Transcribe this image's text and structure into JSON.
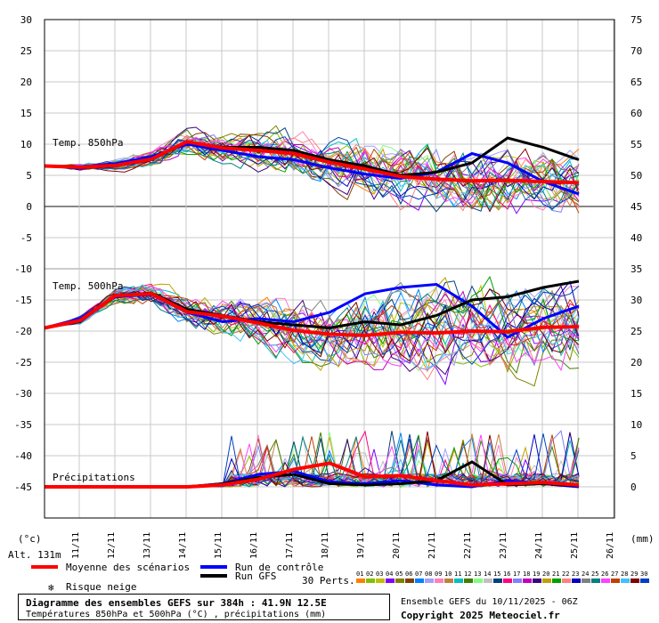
{
  "chart_data": {
    "type": "line",
    "title": "Diagramme des ensembles GEFS sur 384h : 41.9N 12.5E",
    "subtitle": "Températures 850hPa et 500hPa (°C) , précipitations (mm)",
    "left_axis": {
      "unit": "(°c)",
      "ticks": [
        30,
        25,
        20,
        15,
        10,
        5,
        0,
        -5,
        -10,
        -15,
        -20,
        -25,
        -30,
        -35,
        -40,
        -45
      ],
      "ylim": [
        -50,
        30
      ]
    },
    "right_axis": {
      "unit": "(mm)",
      "ticks": [
        75,
        70,
        65,
        60,
        55,
        50,
        45,
        40,
        35,
        30,
        25,
        20,
        15,
        10,
        5,
        0
      ]
    },
    "x_categories": [
      "11/11",
      "12/11",
      "13/11",
      "14/11",
      "15/11",
      "16/11",
      "17/11",
      "18/11",
      "19/11",
      "20/11",
      "21/11",
      "22/11",
      "23/11",
      "24/11",
      "25/11",
      "26/11"
    ],
    "altitude": "Alt. 131m",
    "panel_labels": {
      "t850": "Temp. 850hPa",
      "t500": "Temp. 500hPa",
      "precip": "Précipitations"
    },
    "series": [
      {
        "name": "Moyenne des scénarios",
        "color": "#ff0000",
        "t850": [
          6.5,
          6.3,
          6.6,
          7.6,
          10.4,
          9.4,
          9.0,
          8.5,
          7.1,
          6.0,
          4.8,
          4.4,
          4.1,
          4.2,
          4.0,
          3.8
        ],
        "t500": [
          -19.5,
          -18.3,
          -14.3,
          -14.0,
          -16.9,
          -17.6,
          -18.7,
          -19.9,
          -20.5,
          -20.7,
          -20.2,
          -20.3,
          -20.0,
          -20.1,
          -19.4,
          -19.3
        ],
        "precip": [
          0,
          0,
          0,
          0,
          0,
          0.3,
          1.2,
          2.8,
          3.8,
          1.6,
          1.8,
          1.0,
          0.3,
          0.5,
          0.7,
          0.3
        ]
      },
      {
        "name": "Run de contrôle",
        "color": "#0000ff",
        "t850": [
          6.5,
          6.4,
          6.9,
          8.0,
          10.0,
          9.0,
          8.0,
          7.5,
          6.2,
          5.2,
          4.5,
          5.5,
          8.5,
          7.0,
          4.0,
          2.0
        ],
        "t500": [
          -19.5,
          -18.0,
          -14.5,
          -14.1,
          -17.0,
          -18.5,
          -18.0,
          -18.5,
          -17.0,
          -14.0,
          -13.0,
          -12.5,
          -16.0,
          -21.0,
          -18.0,
          -16.0
        ],
        "precip": [
          0,
          0,
          0,
          0,
          0,
          0.5,
          2.0,
          2.5,
          0.8,
          0.5,
          1.0,
          0.3,
          0,
          1.0,
          0.5,
          0
        ]
      },
      {
        "name": "Run GFS",
        "color": "#000000",
        "t850": [
          6.5,
          6.2,
          6.5,
          7.5,
          10.3,
          9.5,
          9.5,
          9.0,
          7.5,
          6.5,
          5.0,
          5.5,
          7.0,
          11.0,
          9.5,
          7.5
        ],
        "t500": [
          -19.5,
          -18.5,
          -14.2,
          -13.9,
          -16.5,
          -17.5,
          -18.5,
          -19.0,
          -19.5,
          -18.5,
          -19.0,
          -17.5,
          -15.0,
          -14.5,
          -13.0,
          -12.0
        ],
        "precip": [
          0,
          0,
          0,
          0,
          0,
          0.5,
          1.5,
          2.0,
          0.5,
          0.3,
          0.5,
          1.0,
          4.0,
          0.3,
          0.5,
          0.2
        ]
      }
    ],
    "perturbations": {
      "label": "30 Perts.",
      "count": 30
    },
    "legend": {
      "mean": "Moyenne des scénarios",
      "control": "Run de contrôle",
      "gfs": "Run GFS",
      "snow": "Risque neige",
      "perts": "30 Perts.",
      "pert_ids": [
        "01",
        "02",
        "03",
        "04",
        "05",
        "06",
        "07",
        "08",
        "09",
        "10",
        "11",
        "12",
        "13",
        "14",
        "15",
        "16",
        "17",
        "18",
        "19",
        "20",
        "21",
        "22",
        "23",
        "24",
        "25",
        "26",
        "27",
        "28",
        "29",
        "30"
      ],
      "pert_colors": [
        "#ff8000",
        "#80c000",
        "#c0c000",
        "#8000ff",
        "#808000",
        "#804000",
        "#0080ff",
        "#a0a0ff",
        "#ff80c0",
        "#c08040",
        "#00c0c0",
        "#408000",
        "#80ff80",
        "#c0c0c0",
        "#004080",
        "#ff0080",
        "#8080ff",
        "#c000c0",
        "#400080",
        "#c0a000",
        "#00a000",
        "#ff8080",
        "#0000c0",
        "#808080",
        "#008080",
        "#ff40ff",
        "#c04000",
        "#40c0ff",
        "#800000",
        "#0040c0"
      ]
    },
    "grid": true
  },
  "footer": {
    "title": "Diagramme des ensembles GEFS sur 384h : 41.9N 12.5E",
    "subtitle": "Températures 850hPa et 500hPa (°C) , précipitations (mm)",
    "run": "Ensemble GEFS du 10/11/2025 - 06Z",
    "copyright": "Copyright 2025 Meteociel.fr"
  }
}
